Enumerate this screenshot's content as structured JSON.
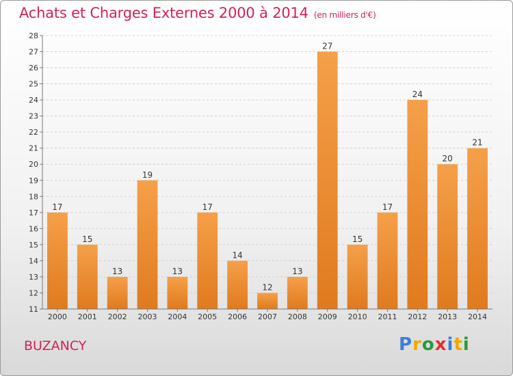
{
  "header": {
    "title": "Achats et Charges Externes 2000 à 2014",
    "subtitle": "(en milliers d'€)"
  },
  "footer": {
    "town": "BUZANCY",
    "logo": [
      "P",
      "r",
      "o",
      "x",
      "i",
      "t",
      "i"
    ],
    "logo_colors": [
      "#3a7fd8",
      "#f0a800",
      "#2a9a3a",
      "#e03030",
      "#3a7fd8",
      "#f0a800",
      "#2a9a3a"
    ]
  },
  "chart_data": {
    "type": "bar",
    "title": "Achats et Charges Externes 2000 à 2014",
    "subtitle": "(en milliers d'€)",
    "categories": [
      "2000",
      "2001",
      "2002",
      "2003",
      "2004",
      "2005",
      "2006",
      "2007",
      "2008",
      "2009",
      "2010",
      "2011",
      "2012",
      "2013",
      "2014"
    ],
    "values": [
      17,
      15,
      13,
      19,
      13,
      17,
      14,
      12,
      13,
      27,
      15,
      17,
      24,
      20,
      21
    ],
    "ylim": [
      11,
      28
    ],
    "yticks": [
      11,
      12,
      13,
      14,
      15,
      16,
      17,
      18,
      19,
      20,
      21,
      22,
      23,
      24,
      25,
      26,
      27,
      28
    ],
    "grid": true,
    "bar_color_top": "#f5a04a",
    "bar_color_bottom": "#e07a1e"
  }
}
